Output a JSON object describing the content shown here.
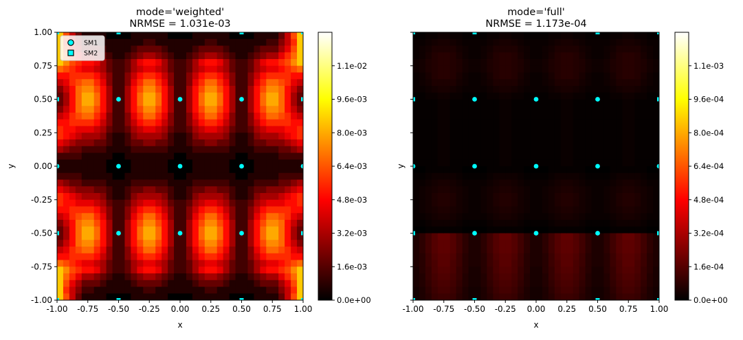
{
  "chart_data": [
    {
      "type": "heatmap",
      "title_line1": "mode='weighted'",
      "title_line2": "NRMSE = 1.031e-03",
      "xlabel": "x",
      "ylabel": "y",
      "xlim": [
        -1.0,
        1.0
      ],
      "ylim": [
        -1.0,
        1.0
      ],
      "x_ticks": [
        "-1.00",
        "-0.75",
        "-0.50",
        "-0.25",
        "0.00",
        "0.25",
        "0.50",
        "0.75",
        "1.00"
      ],
      "y_ticks": [
        "-1.00",
        "-0.75",
        "-0.50",
        "-0.25",
        "0.00",
        "0.25",
        "0.50",
        "0.75",
        "1.00"
      ],
      "colormap": "hot",
      "colorbar_range": [
        0.0,
        0.0128
      ],
      "colorbar_ticks": [
        {
          "value": 0.0,
          "label": "0.0e+00"
        },
        {
          "value": 0.0016,
          "label": "1.6e-03"
        },
        {
          "value": 0.0032,
          "label": "3.2e-03"
        },
        {
          "value": 0.0048,
          "label": "4.8e-03"
        },
        {
          "value": 0.0064,
          "label": "6.4e-03"
        },
        {
          "value": 0.008,
          "label": "8.0e-03"
        },
        {
          "value": 0.0096,
          "label": "9.6e-03"
        },
        {
          "value": 0.0112,
          "label": "1.1e-02"
        }
      ],
      "legend": {
        "placement": "top-left",
        "entries": [
          {
            "label": "SM1",
            "marker": "circle"
          },
          {
            "label": "SM2",
            "marker": "square"
          }
        ]
      },
      "peak_fraction_of_colorbar": 0.95,
      "sm1_points": [
        [
          -0.5,
          0.5
        ],
        [
          0.0,
          0.5
        ],
        [
          0.5,
          0.5
        ],
        [
          -1.0,
          0.0
        ],
        [
          -0.5,
          0.0
        ],
        [
          0.0,
          0.0
        ],
        [
          0.5,
          0.0
        ],
        [
          1.0,
          0.0
        ],
        [
          -0.5,
          -0.5
        ],
        [
          0.0,
          -0.5
        ],
        [
          0.5,
          -0.5
        ]
      ],
      "sm2_points": [
        [
          -1.0,
          1.0
        ],
        [
          -0.5,
          1.0
        ],
        [
          0.5,
          1.0
        ],
        [
          1.0,
          1.0
        ],
        [
          -1.0,
          0.5
        ],
        [
          1.0,
          0.5
        ],
        [
          -1.0,
          -0.5
        ],
        [
          1.0,
          -0.5
        ],
        [
          -1.0,
          -1.0
        ],
        [
          -0.5,
          -1.0
        ],
        [
          0.5,
          -1.0
        ],
        [
          1.0,
          -1.0
        ]
      ]
    },
    {
      "type": "heatmap",
      "title_line1": "mode='full'",
      "title_line2": "NRMSE = 1.173e-04",
      "xlabel": "x",
      "ylabel": "y",
      "xlim": [
        -1.0,
        1.0
      ],
      "ylim": [
        -1.0,
        1.0
      ],
      "x_ticks": [
        "-1.00",
        "-0.75",
        "-0.50",
        "-0.25",
        "0.00",
        "0.25",
        "0.50",
        "0.75",
        "1.00"
      ],
      "y_ticks": [],
      "colormap": "hot",
      "colorbar_range": [
        0.0,
        0.00128
      ],
      "colorbar_ticks": [
        {
          "value": 0.0,
          "label": "0.0e+00"
        },
        {
          "value": 0.00016,
          "label": "1.6e-04"
        },
        {
          "value": 0.00032,
          "label": "3.2e-04"
        },
        {
          "value": 0.00048,
          "label": "4.8e-04"
        },
        {
          "value": 0.00064,
          "label": "6.4e-04"
        },
        {
          "value": 0.0008,
          "label": "8.0e-04"
        },
        {
          "value": 0.00096,
          "label": "9.6e-04"
        },
        {
          "value": 0.00112,
          "label": "1.1e-03"
        }
      ],
      "peak_fraction_of_colorbar": 0.14,
      "sm1_points": [
        [
          -0.5,
          0.5
        ],
        [
          0.0,
          0.5
        ],
        [
          0.5,
          0.5
        ],
        [
          -1.0,
          0.0
        ],
        [
          -0.5,
          0.0
        ],
        [
          0.0,
          0.0
        ],
        [
          0.5,
          0.0
        ],
        [
          1.0,
          0.0
        ],
        [
          -0.5,
          -0.5
        ],
        [
          0.0,
          -0.5
        ],
        [
          0.5,
          -0.5
        ]
      ],
      "sm2_points": [
        [
          -1.0,
          1.0
        ],
        [
          -0.5,
          1.0
        ],
        [
          0.5,
          1.0
        ],
        [
          1.0,
          1.0
        ],
        [
          -1.0,
          0.5
        ],
        [
          1.0,
          0.5
        ],
        [
          -1.0,
          -0.5
        ],
        [
          1.0,
          -0.5
        ],
        [
          -1.0,
          -1.0
        ],
        [
          -0.5,
          -1.0
        ],
        [
          0.5,
          -1.0
        ],
        [
          1.0,
          -1.0
        ]
      ]
    }
  ],
  "colors": {
    "marker_fill": "#00ffff",
    "marker_edge": "#000000",
    "cmap_stops": [
      "#000000",
      "#e60000",
      "#ffd200",
      "#ffffff"
    ]
  }
}
